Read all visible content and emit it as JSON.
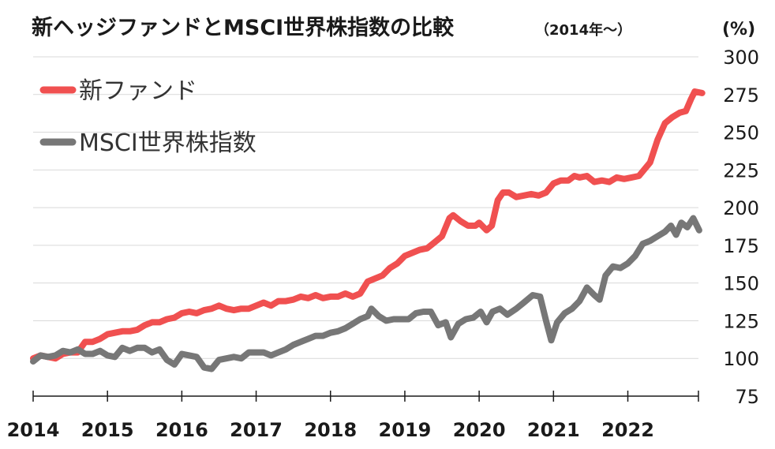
{
  "chart_data": {
    "type": "line",
    "title": "新ヘッジファンドとMSCI世界株指数の比較",
    "subtitle": "（2014年〜）",
    "unit": "(%)",
    "ylim": [
      75,
      300
    ],
    "y_ticks": [
      "300",
      "275",
      "250",
      "225",
      "200",
      "175",
      "150",
      "125",
      "100",
      "75"
    ],
    "x_ticks": [
      "2014",
      "2015",
      "2016",
      "2017",
      "2018",
      "2019",
      "2020",
      "2021",
      "2022"
    ],
    "xlim": [
      2014,
      2022.95
    ],
    "grid": true,
    "legend_position": "top-left",
    "series": [
      {
        "name": "新ファンド",
        "color": "#f05050",
        "points": [
          [
            2014.0,
            100
          ],
          [
            2014.1,
            102
          ],
          [
            2014.2,
            101
          ],
          [
            2014.3,
            100
          ],
          [
            2014.4,
            103
          ],
          [
            2014.5,
            104
          ],
          [
            2014.6,
            104
          ],
          [
            2014.7,
            111
          ],
          [
            2014.8,
            111
          ],
          [
            2014.9,
            113
          ],
          [
            2015.0,
            116
          ],
          [
            2015.1,
            117
          ],
          [
            2015.2,
            118
          ],
          [
            2015.3,
            118
          ],
          [
            2015.4,
            119
          ],
          [
            2015.5,
            122
          ],
          [
            2015.6,
            124
          ],
          [
            2015.7,
            124
          ],
          [
            2015.8,
            126
          ],
          [
            2015.9,
            127
          ],
          [
            2016.0,
            130
          ],
          [
            2016.1,
            131
          ],
          [
            2016.2,
            130
          ],
          [
            2016.3,
            132
          ],
          [
            2016.4,
            133
          ],
          [
            2016.5,
            135
          ],
          [
            2016.6,
            133
          ],
          [
            2016.7,
            132
          ],
          [
            2016.8,
            133
          ],
          [
            2016.9,
            133
          ],
          [
            2017.0,
            135
          ],
          [
            2017.1,
            137
          ],
          [
            2017.2,
            135
          ],
          [
            2017.3,
            138
          ],
          [
            2017.4,
            138
          ],
          [
            2017.5,
            139
          ],
          [
            2017.6,
            141
          ],
          [
            2017.7,
            140
          ],
          [
            2017.8,
            142
          ],
          [
            2017.9,
            140
          ],
          [
            2018.0,
            141
          ],
          [
            2018.1,
            141
          ],
          [
            2018.2,
            143
          ],
          [
            2018.3,
            141
          ],
          [
            2018.4,
            143
          ],
          [
            2018.5,
            151
          ],
          [
            2018.6,
            153
          ],
          [
            2018.7,
            155
          ],
          [
            2018.8,
            160
          ],
          [
            2018.9,
            163
          ],
          [
            2019.0,
            168
          ],
          [
            2019.1,
            170
          ],
          [
            2019.2,
            172
          ],
          [
            2019.3,
            173
          ],
          [
            2019.4,
            177
          ],
          [
            2019.5,
            181
          ],
          [
            2019.6,
            193
          ],
          [
            2019.65,
            195
          ],
          [
            2019.75,
            191
          ],
          [
            2019.85,
            188
          ],
          [
            2019.95,
            188
          ],
          [
            2020.0,
            190
          ],
          [
            2020.1,
            185
          ],
          [
            2020.17,
            188
          ],
          [
            2020.25,
            205
          ],
          [
            2020.32,
            210
          ],
          [
            2020.4,
            210
          ],
          [
            2020.5,
            207
          ],
          [
            2020.6,
            208
          ],
          [
            2020.7,
            209
          ],
          [
            2020.8,
            208
          ],
          [
            2020.9,
            210
          ],
          [
            2021.0,
            216
          ],
          [
            2021.1,
            218
          ],
          [
            2021.2,
            218
          ],
          [
            2021.28,
            221
          ],
          [
            2021.35,
            220
          ],
          [
            2021.45,
            221
          ],
          [
            2021.55,
            217
          ],
          [
            2021.65,
            218
          ],
          [
            2021.75,
            217
          ],
          [
            2021.85,
            220
          ],
          [
            2021.95,
            219
          ],
          [
            2022.05,
            220
          ],
          [
            2022.15,
            221
          ],
          [
            2022.3,
            230
          ],
          [
            2022.4,
            245
          ],
          [
            2022.5,
            256
          ],
          [
            2022.6,
            260
          ],
          [
            2022.7,
            263
          ],
          [
            2022.78,
            264
          ],
          [
            2022.85,
            272
          ],
          [
            2022.9,
            277
          ],
          [
            2023.0,
            276
          ]
        ]
      },
      {
        "name": "MSCI世界株指数",
        "color": "#777777",
        "points": [
          [
            2014.0,
            98
          ],
          [
            2014.1,
            102
          ],
          [
            2014.2,
            101
          ],
          [
            2014.3,
            102
          ],
          [
            2014.4,
            105
          ],
          [
            2014.5,
            104
          ],
          [
            2014.6,
            106
          ],
          [
            2014.7,
            103
          ],
          [
            2014.8,
            103
          ],
          [
            2014.9,
            105
          ],
          [
            2015.0,
            102
          ],
          [
            2015.1,
            101
          ],
          [
            2015.2,
            107
          ],
          [
            2015.3,
            105
          ],
          [
            2015.4,
            107
          ],
          [
            2015.5,
            107
          ],
          [
            2015.6,
            104
          ],
          [
            2015.7,
            106
          ],
          [
            2015.8,
            99
          ],
          [
            2015.9,
            96
          ],
          [
            2016.0,
            103
          ],
          [
            2016.1,
            102
          ],
          [
            2016.2,
            101
          ],
          [
            2016.3,
            94
          ],
          [
            2016.4,
            93
          ],
          [
            2016.5,
            99
          ],
          [
            2016.6,
            100
          ],
          [
            2016.7,
            101
          ],
          [
            2016.8,
            100
          ],
          [
            2016.9,
            104
          ],
          [
            2017.0,
            104
          ],
          [
            2017.1,
            104
          ],
          [
            2017.2,
            102
          ],
          [
            2017.3,
            104
          ],
          [
            2017.4,
            106
          ],
          [
            2017.5,
            109
          ],
          [
            2017.6,
            111
          ],
          [
            2017.7,
            113
          ],
          [
            2017.8,
            115
          ],
          [
            2017.9,
            115
          ],
          [
            2018.0,
            117
          ],
          [
            2018.1,
            118
          ],
          [
            2018.2,
            120
          ],
          [
            2018.3,
            123
          ],
          [
            2018.4,
            126
          ],
          [
            2018.5,
            128
          ],
          [
            2018.55,
            133
          ],
          [
            2018.65,
            128
          ],
          [
            2018.75,
            125
          ],
          [
            2018.85,
            126
          ],
          [
            2018.95,
            126
          ],
          [
            2019.05,
            126
          ],
          [
            2019.15,
            130
          ],
          [
            2019.25,
            131
          ],
          [
            2019.35,
            131
          ],
          [
            2019.45,
            122
          ],
          [
            2019.55,
            124
          ],
          [
            2019.62,
            114
          ],
          [
            2019.72,
            123
          ],
          [
            2019.82,
            126
          ],
          [
            2019.92,
            127
          ],
          [
            2020.02,
            131
          ],
          [
            2020.1,
            124
          ],
          [
            2020.18,
            131
          ],
          [
            2020.28,
            133
          ],
          [
            2020.38,
            129
          ],
          [
            2020.5,
            133
          ],
          [
            2020.6,
            137
          ],
          [
            2020.72,
            142
          ],
          [
            2020.82,
            141
          ],
          [
            2020.9,
            125
          ],
          [
            2020.97,
            112
          ],
          [
            2021.05,
            124
          ],
          [
            2021.15,
            130
          ],
          [
            2021.25,
            133
          ],
          [
            2021.35,
            138
          ],
          [
            2021.45,
            147
          ],
          [
            2021.55,
            142
          ],
          [
            2021.62,
            139
          ],
          [
            2021.7,
            155
          ],
          [
            2021.8,
            161
          ],
          [
            2021.9,
            160
          ],
          [
            2022.0,
            163
          ],
          [
            2022.1,
            168
          ],
          [
            2022.2,
            176
          ],
          [
            2022.3,
            178
          ],
          [
            2022.4,
            181
          ],
          [
            2022.5,
            184
          ],
          [
            2022.58,
            188
          ],
          [
            2022.65,
            182
          ],
          [
            2022.72,
            190
          ],
          [
            2022.8,
            187
          ],
          [
            2022.88,
            193
          ],
          [
            2022.96,
            185
          ]
        ]
      }
    ]
  }
}
